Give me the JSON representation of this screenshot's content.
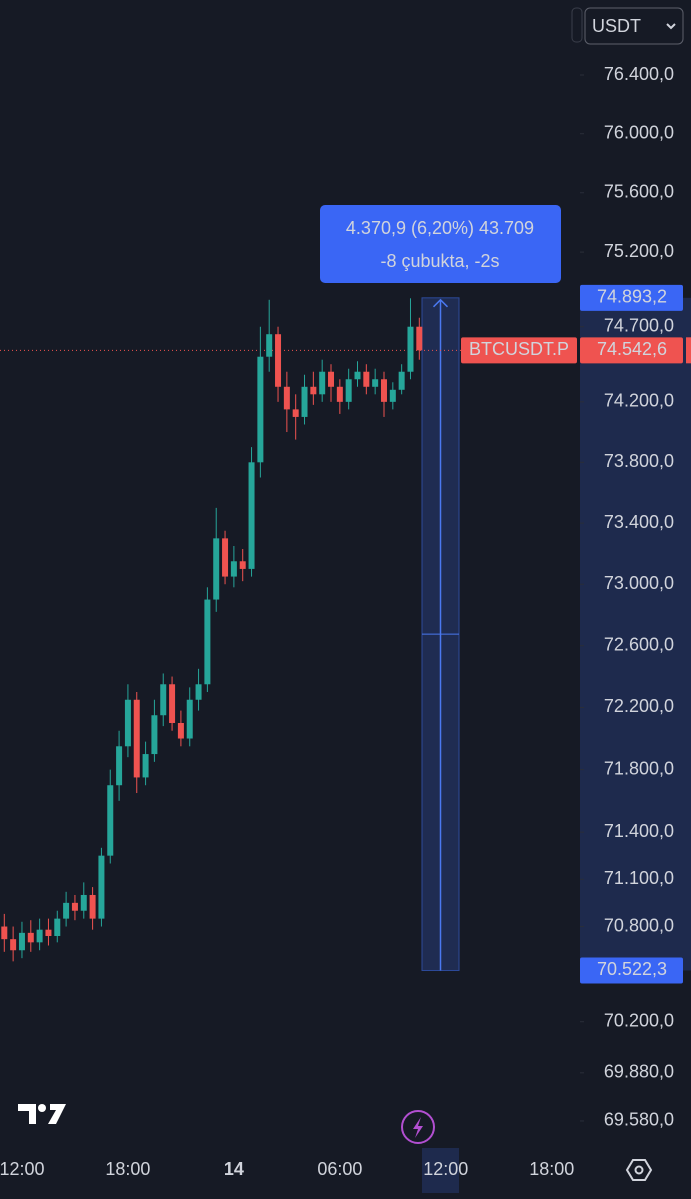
{
  "chart_data": {
    "type": "candlestick",
    "symbol": "BTCUSDT.P",
    "currency_selector": "USDT",
    "log_scale": true,
    "up_color": "#26a69a",
    "down_color": "#ef5350",
    "categories": [
      null,
      null,
      "12:00",
      null,
      null,
      null,
      null,
      null,
      null,
      null,
      null,
      null,
      null,
      null,
      "18:00",
      null,
      null,
      null,
      null,
      null,
      null,
      null,
      null,
      null,
      null,
      null,
      "14",
      null,
      null,
      null,
      null,
      null,
      null,
      null,
      null,
      null,
      null,
      null,
      "06:00",
      null,
      null,
      null,
      null,
      null,
      null,
      null,
      null,
      null,
      null,
      null,
      "12:00",
      null,
      null,
      null,
      null,
      null,
      null,
      null,
      null,
      null,
      null,
      null,
      "18:00",
      null
    ],
    "open": [
      70800,
      70720,
      70650,
      70760,
      70700,
      70780,
      70740,
      70850,
      70950,
      70900,
      71000,
      70850,
      71250,
      71700,
      71950,
      72250,
      71750,
      71900,
      72150,
      72350,
      72100,
      72000,
      72250,
      72350,
      72900,
      73300,
      73050,
      73150,
      73100,
      73800,
      74500,
      74650,
      74300,
      74150,
      74100,
      74300,
      74250,
      74400,
      74300,
      74200,
      74350,
      74400,
      74300,
      74350,
      74200,
      74280,
      74400,
      74700,
      null,
      null,
      null,
      null,
      null,
      null,
      null,
      null,
      null,
      null,
      null,
      null,
      null,
      null,
      null,
      null
    ],
    "high": [
      70880,
      70800,
      70830,
      70840,
      70850,
      70850,
      70900,
      71020,
      71000,
      71080,
      71050,
      71300,
      71800,
      72050,
      72350,
      72300,
      71980,
      72250,
      72420,
      72400,
      72180,
      72330,
      72450,
      72980,
      73500,
      73350,
      73250,
      73230,
      73900,
      74700,
      74880,
      74700,
      74400,
      74250,
      74380,
      74400,
      74480,
      74450,
      74350,
      74420,
      74470,
      74450,
      74420,
      74400,
      74330,
      74450,
      74890,
      74760,
      null,
      null,
      null,
      null,
      null,
      null,
      null,
      null,
      null,
      null,
      null,
      null,
      null,
      null,
      null,
      null
    ],
    "low": [
      70640,
      70580,
      70600,
      70640,
      70650,
      70680,
      70700,
      70800,
      70840,
      70850,
      70780,
      70800,
      71200,
      71600,
      71880,
      71650,
      71700,
      71850,
      72080,
      72050,
      71950,
      71950,
      72180,
      72300,
      72820,
      73000,
      72980,
      73020,
      73050,
      73700,
      74400,
      74200,
      74000,
      73950,
      74050,
      74180,
      74200,
      74200,
      74120,
      74150,
      74300,
      74250,
      74250,
      74100,
      74150,
      74250,
      74350,
      74480,
      null,
      null,
      null,
      null,
      null,
      null,
      null,
      null,
      null,
      null,
      null,
      null,
      null,
      null,
      null,
      null
    ],
    "close": [
      70720,
      70650,
      70760,
      70700,
      70780,
      70740,
      70850,
      70950,
      70900,
      71000,
      70850,
      71250,
      71700,
      71950,
      72250,
      71750,
      71900,
      72150,
      72350,
      72100,
      72000,
      72250,
      72350,
      72900,
      73300,
      73050,
      73150,
      73100,
      73800,
      74500,
      74650,
      74300,
      74150,
      74100,
      74300,
      74250,
      74400,
      74300,
      74200,
      74350,
      74400,
      74300,
      74350,
      74200,
      74280,
      74400,
      74700,
      74542.6,
      null,
      null,
      null,
      null,
      null,
      null,
      null,
      null,
      null,
      null,
      null,
      null,
      null,
      null,
      null,
      null
    ],
    "ylim": [
      69412,
      76914
    ],
    "yticks": [
      {
        "value": 76400,
        "label": "76.400,0"
      },
      {
        "value": 76000,
        "label": "76.000,0"
      },
      {
        "value": 75600,
        "label": "75.600,0"
      },
      {
        "value": 75200,
        "label": "75.200,0"
      },
      {
        "value": 74700,
        "label": "74.700,0"
      },
      {
        "value": 74200,
        "label": "74.200,0"
      },
      {
        "value": 73800,
        "label": "73.800,0"
      },
      {
        "value": 73400,
        "label": "73.400,0"
      },
      {
        "value": 73000,
        "label": "73.000,0"
      },
      {
        "value": 72600,
        "label": "72.600,0"
      },
      {
        "value": 72200,
        "label": "72.200,0"
      },
      {
        "value": 71800,
        "label": "71.800,0"
      },
      {
        "value": 71400,
        "label": "71.400,0"
      },
      {
        "value": 71100,
        "label": "71.100,0"
      },
      {
        "value": 70800,
        "label": "70.800,0"
      },
      {
        "value": 70200,
        "label": "70.200,0"
      },
      {
        "value": 69880,
        "label": "69.880,0"
      },
      {
        "value": 69580,
        "label": "69.580,0"
      }
    ],
    "current_price": {
      "value": 74542.6,
      "label": "74.542,6"
    },
    "measure": {
      "from": {
        "value": 70522.3,
        "label": "70.522,3"
      },
      "to": {
        "value": 74893.2,
        "label": "74.893,2"
      },
      "lines": [
        "4.370,9 (6,20%) 43.709",
        "-8 çubukta, -2s"
      ]
    }
  }
}
